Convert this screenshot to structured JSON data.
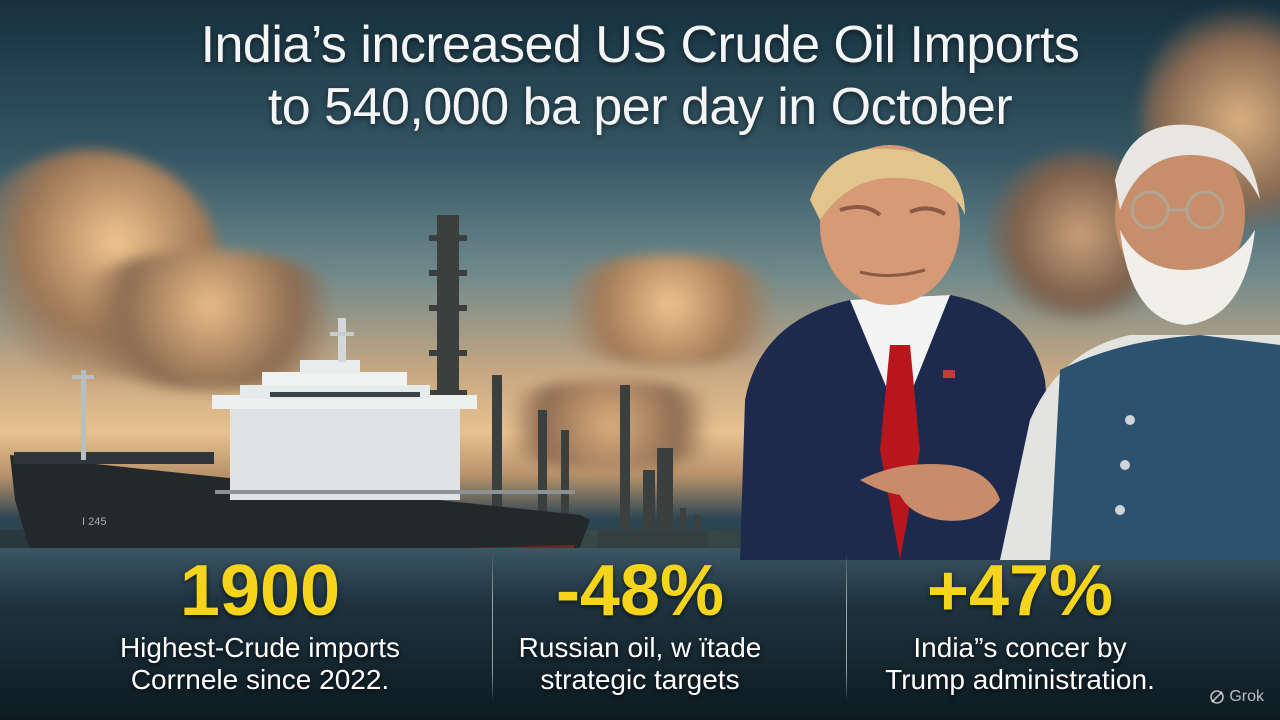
{
  "headline": {
    "line1": "India’s increased US Crude Oil Imports",
    "line2": "to 540,000 ba per day in October"
  },
  "stats": [
    {
      "value": "1900",
      "caption_line1": "Highest-Crude imports",
      "caption_line2": "Corrnele since 2022."
    },
    {
      "value": "-48%",
      "caption_line1": "Russian oil, w ïtade",
      "caption_line2": "strategic targets"
    },
    {
      "value": "+47%",
      "caption_line1": "India”s concer by",
      "caption_line2": "Trump administration."
    }
  ],
  "ship": {
    "hull_text": "I 245"
  },
  "watermark": {
    "icon": "grok-logo-icon",
    "label": "Grok"
  },
  "colors": {
    "accent_yellow": "#f5d51c",
    "title_white": "#f3f5f7"
  }
}
